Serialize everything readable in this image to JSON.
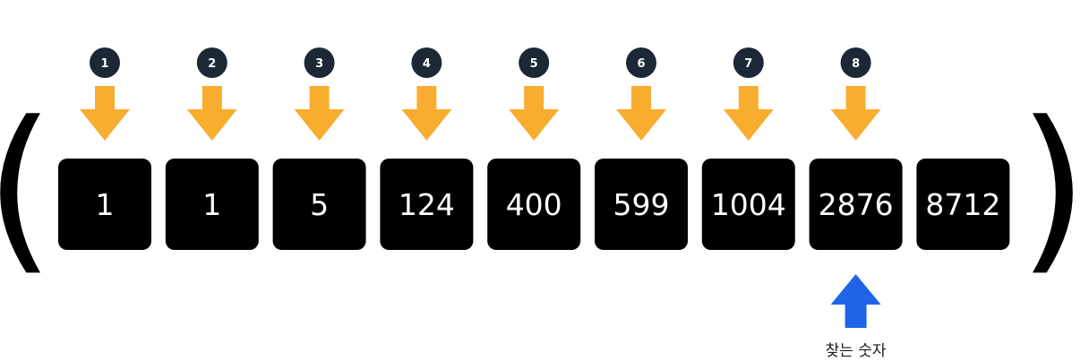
{
  "brackets": {
    "open": "(",
    "close": ")"
  },
  "array": [
    "1",
    "1",
    "5",
    "124",
    "400",
    "599",
    "1004",
    "2876",
    "8712"
  ],
  "steps": [
    "1",
    "2",
    "3",
    "4",
    "5",
    "6",
    "7",
    "8"
  ],
  "target": {
    "index": 7,
    "label": "찾는 숫자"
  },
  "colors": {
    "cell_fill": "#000000",
    "cell_text": "#ffffff",
    "badge_fill": "#1c2836",
    "step_arrow": "#f8ad2f",
    "target_arrow": "#1f64e6"
  }
}
